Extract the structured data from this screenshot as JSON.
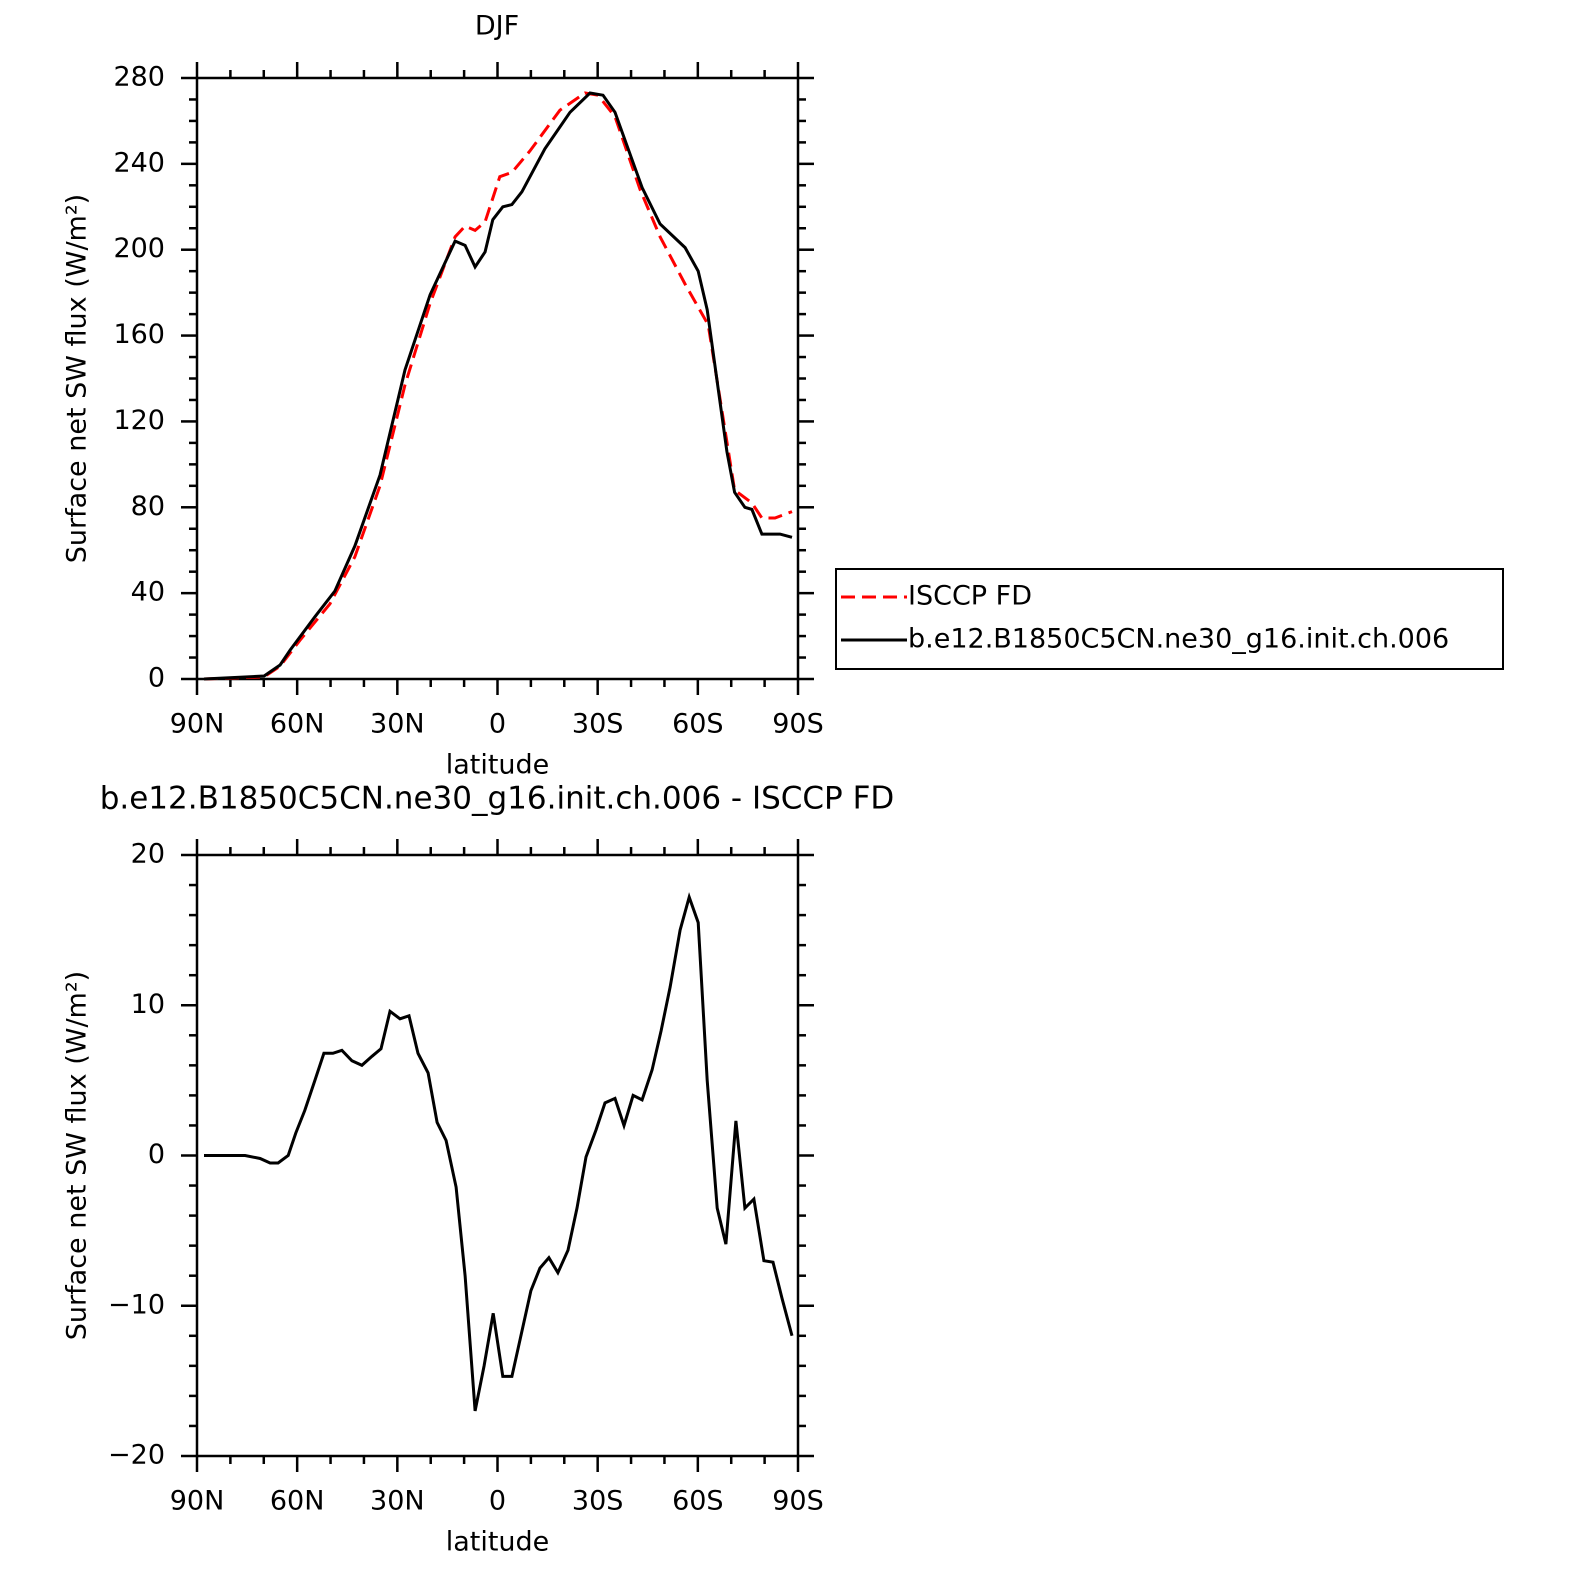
{
  "chart_data": [
    {
      "type": "line",
      "title": "DJF",
      "x_label": "latitude",
      "y_label": "Surface net SW flux (W/m²)",
      "xlim": [
        90,
        -90
      ],
      "ylim": [
        0,
        280
      ],
      "xticks": [
        {
          "value": 90,
          "label": "90N"
        },
        {
          "value": 60,
          "label": "60N"
        },
        {
          "value": 30,
          "label": "30N"
        },
        0,
        {
          "value": -30,
          "label": "30S"
        },
        {
          "value": -60,
          "label": "60S"
        },
        {
          "value": -90,
          "label": "90S"
        }
      ],
      "yticks": [
        0,
        40,
        80,
        120,
        160,
        200,
        240,
        280
      ],
      "minor_xticks": [
        80,
        70,
        50,
        40,
        20,
        10,
        -10,
        -20,
        -40,
        -50,
        -70,
        -80
      ],
      "minor_yticks": [
        10,
        20,
        30,
        50,
        60,
        70,
        90,
        100,
        110,
        130,
        140,
        150,
        170,
        180,
        190,
        210,
        220,
        230,
        250,
        260,
        270
      ],
      "legend": "right",
      "series": [
        {
          "name": "ISCCP FD",
          "color": "#ff0000",
          "linestyle": "dashed",
          "x": [
            87.9,
            69.9,
            65.1,
            59.2,
            50.2,
            42.7,
            35.2,
            27.7,
            20.2,
            12.7,
            9.7,
            6.7,
            3.7,
            -0.7,
            -4.3,
            -9.7,
            -18.7,
            -26.2,
            -30.1,
            -35.2,
            -42.7,
            -48.7,
            -56.2,
            -63.1,
            -71.0,
            -76.2,
            -79.2,
            -83.1,
            -88.2
          ],
          "values": [
            0,
            1,
            6,
            18,
            35,
            57,
            90,
            137,
            175,
            206,
            211,
            209,
            213,
            234,
            236,
            246,
            265,
            273,
            272,
            262,
            228,
            206,
            184,
            165,
            88,
            82,
            75,
            75,
            78
          ]
        },
        {
          "name": "b.e12.B1850C5CN.ne30_g16.init.ch.006",
          "color": "#000000",
          "linestyle": "solid",
          "x": [
            87.9,
            69.9,
            65.1,
            62.1,
            54.7,
            48.7,
            42.7,
            35.2,
            27.7,
            20.2,
            12.7,
            9.7,
            6.7,
            3.7,
            1.4,
            -1.6,
            -4.3,
            -7.3,
            -14.2,
            -21.7,
            -27.7,
            -31.6,
            -35.2,
            -39.1,
            -43.3,
            -48.7,
            -56.2,
            -60.1,
            -62.8,
            -68.7,
            -71.0,
            -74.1,
            -76.2,
            -79.2,
            -84.6,
            -88.2
          ],
          "values": [
            0,
            1.4,
            6.5,
            13.5,
            29,
            41,
            62,
            95,
            144,
            179,
            204,
            202,
            192,
            199,
            214,
            220,
            221,
            227,
            247,
            264,
            273,
            272,
            264,
            247,
            229,
            212,
            201,
            190,
            172,
            106,
            87,
            80,
            79,
            67.5,
            67.5,
            66
          ]
        }
      ]
    },
    {
      "type": "line",
      "title": "b.e12.B1850C5CN.ne30_g16.init.ch.006 - ISCCP FD",
      "x_label": "latitude",
      "y_label": "Surface net SW flux (W/m²)",
      "xlim": [
        90,
        -90
      ],
      "ylim": [
        -20,
        20
      ],
      "xticks": [
        {
          "value": 90,
          "label": "90N"
        },
        {
          "value": 60,
          "label": "60N"
        },
        {
          "value": 30,
          "label": "30N"
        },
        0,
        {
          "value": -30,
          "label": "30S"
        },
        {
          "value": -60,
          "label": "60S"
        },
        {
          "value": -90,
          "label": "90S"
        }
      ],
      "yticks": [
        {
          "value": -20,
          "label": "−20"
        },
        {
          "value": -10,
          "label": "−10"
        },
        0,
        10,
        20
      ],
      "minor_xticks": [
        80,
        70,
        50,
        40,
        20,
        10,
        -10,
        -20,
        -40,
        -50,
        -70,
        -80
      ],
      "minor_yticks": [
        -18,
        -16,
        -14,
        -12,
        -8,
        -6,
        -4,
        -2,
        2,
        4,
        6,
        8,
        12,
        14,
        16,
        18
      ],
      "series": [
        {
          "color": "#000000",
          "linestyle": "solid",
          "x": [
            87.9,
            75.6,
            71.1,
            68.1,
            65.7,
            62.7,
            60.4,
            57.7,
            54.7,
            52.0,
            49.3,
            46.6,
            43.6,
            40.6,
            37.6,
            34.9,
            32.2,
            29.2,
            26.5,
            23.8,
            20.8,
            18.1,
            15.4,
            12.4,
            9.7,
            6.7,
            4.0,
            1.3,
            -1.6,
            -4.3,
            -7.0,
            -10.0,
            -12.7,
            -15.4,
            -18.1,
            -21.1,
            -23.8,
            -26.5,
            -29.5,
            -32.2,
            -35.2,
            -37.9,
            -40.6,
            -43.3,
            -46.3,
            -49.0,
            -51.7,
            -54.7,
            -57.4,
            -60.1,
            -62.8,
            -65.8,
            -68.4,
            -71.4,
            -74.1,
            -76.8,
            -79.8,
            -82.5,
            -85.2,
            -88.2
          ],
          "values": [
            0,
            0,
            -0.2,
            -0.5,
            -0.5,
            0,
            1.5,
            3,
            5,
            6.8,
            6.8,
            7,
            6.3,
            6,
            6.6,
            7.1,
            9.6,
            9.1,
            9.3,
            6.8,
            5.5,
            2.2,
            1,
            -2.1,
            -8,
            -17,
            -14,
            -10.5,
            -14.7,
            -14.7,
            -12,
            -9,
            -7.5,
            -6.8,
            -7.8,
            -6.3,
            -3.5,
            -0.1,
            1.7,
            3.5,
            3.8,
            2,
            4,
            3.7,
            5.7,
            8.3,
            11.2,
            15,
            17.2,
            15.5,
            5,
            -3.5,
            -5.9,
            2.3,
            -3.5,
            -2.9,
            -7,
            -7.1,
            -9.5,
            -12
          ]
        }
      ]
    }
  ]
}
